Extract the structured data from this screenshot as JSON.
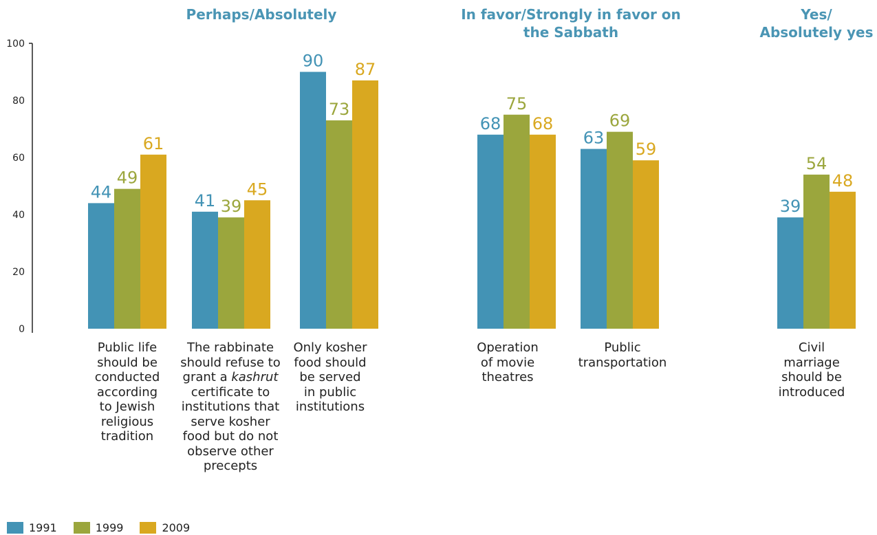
{
  "chart_data": {
    "type": "bar",
    "ylim": [
      0,
      100
    ],
    "yticks": [
      0,
      20,
      40,
      60,
      80,
      100
    ],
    "grid": false,
    "legend_position": "bottom-left",
    "series": [
      {
        "name": "1991",
        "color": "#4393b5"
      },
      {
        "name": "1999",
        "color": "#9ba63d"
      },
      {
        "name": "2009",
        "color": "#d9a820"
      }
    ],
    "groups": [
      {
        "title": "Perhaps/Absolutely",
        "title_color": "#4a95b4",
        "categories": [
          {
            "label": "Public life\nshould be\nconducted\naccording\nto Jewish\nreligious\ntradition",
            "values": [
              44,
              49,
              61
            ]
          },
          {
            "label": "The rabbinate\nshould refuse to\ngrant a kashrut\ncertificate to\ninstitutions that\nserve kosher\nfood but do not\nobserve other\nprecepts",
            "italic_word": "kashrut",
            "values": [
              41,
              39,
              45
            ]
          },
          {
            "label": "Only kosher\nfood should\nbe served\nin public\ninstitutions",
            "values": [
              90,
              73,
              87
            ]
          }
        ]
      },
      {
        "title": "In favor/Strongly in favor on\nthe Sabbath",
        "title_color": "#4a95b4",
        "categories": [
          {
            "label": "Operation\nof movie\ntheatres",
            "values": [
              68,
              75,
              68
            ]
          },
          {
            "label": "Public\ntransportation",
            "values": [
              63,
              69,
              59
            ]
          }
        ]
      },
      {
        "title": "Yes/\nAbsolutely yes",
        "title_color": "#4a95b4",
        "categories": [
          {
            "label": "Civil\nmarriage\nshould be\nintroduced",
            "values": [
              39,
              54,
              48
            ]
          }
        ]
      }
    ]
  }
}
